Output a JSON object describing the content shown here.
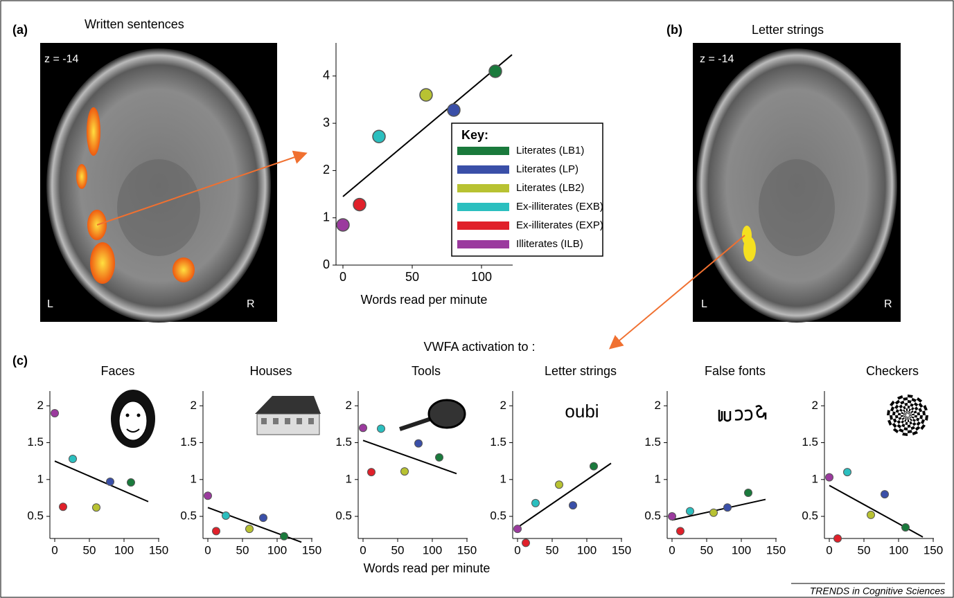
{
  "panel_a": {
    "label": "(a)",
    "title": "Written sentences",
    "slice": "z = -14",
    "left": "L",
    "right": "R"
  },
  "panel_b": {
    "label": "(b)",
    "title": "Letter strings",
    "slice": "z = -14",
    "left": "L",
    "right": "R"
  },
  "panel_c": {
    "label": "(c)",
    "title": "VWFA activation to :",
    "xlabel": "Words read per minute"
  },
  "footer": "TRENDS in Cognitive Sciences",
  "chart_data": [
    {
      "type": "scatter",
      "xlabel": "Words read per minute",
      "legend_title": "Key:",
      "xlim": [
        -5,
        122.5
      ],
      "ylim": [
        0,
        4.7
      ],
      "xticks": [
        0,
        50,
        100
      ],
      "yticks": [
        0,
        1,
        2,
        3,
        4
      ],
      "fit": {
        "x": [
          0,
          122
        ],
        "y": [
          1.45,
          4.45
        ]
      },
      "series": [
        {
          "name": "Literates (LB1)",
          "color": "#1a7a3c",
          "x": [
            110
          ],
          "values": [
            4.1
          ]
        },
        {
          "name": "Literates (LP)",
          "color": "#3a4fa8",
          "x": [
            80
          ],
          "values": [
            3.28
          ]
        },
        {
          "name": "Literates (LB2)",
          "color": "#b8c232",
          "x": [
            60
          ],
          "values": [
            3.6
          ]
        },
        {
          "name": "Ex-illiterates (EXB)",
          "color": "#2bbfbf",
          "x": [
            26
          ],
          "values": [
            2.72
          ]
        },
        {
          "name": "Ex-illiterates (EXP)",
          "color": "#e0202a",
          "x": [
            12
          ],
          "values": [
            1.28
          ]
        },
        {
          "name": "Illiterates (ILB)",
          "color": "#9b3a9e",
          "x": [
            0
          ],
          "values": [
            0.85
          ]
        }
      ]
    },
    {
      "type": "scatter",
      "title": "Faces",
      "x": [
        110,
        80,
        60,
        26,
        12,
        0
      ],
      "values": [
        0.96,
        0.97,
        0.62,
        1.28,
        0.63,
        1.9
      ],
      "colors": [
        "#1a7a3c",
        "#3a4fa8",
        "#b8c232",
        "#2bbfbf",
        "#e0202a",
        "#9b3a9e"
      ],
      "fit": {
        "x": [
          0,
          135
        ],
        "y": [
          1.25,
          0.7
        ]
      },
      "xlim": [
        -7,
        151
      ],
      "ylim": [
        0.2,
        2.2
      ],
      "xticks": [
        0,
        50,
        100,
        150
      ],
      "yticks": [
        0.5,
        1,
        1.5,
        2
      ]
    },
    {
      "type": "scatter",
      "title": "Houses",
      "x": [
        110,
        80,
        60,
        26,
        12,
        0
      ],
      "values": [
        0.23,
        0.48,
        0.33,
        0.51,
        0.3,
        0.78
      ],
      "colors": [
        "#1a7a3c",
        "#3a4fa8",
        "#b8c232",
        "#2bbfbf",
        "#e0202a",
        "#9b3a9e"
      ],
      "fit": {
        "x": [
          0,
          135
        ],
        "y": [
          0.62,
          0.15
        ]
      },
      "xlim": [
        -7,
        151
      ],
      "ylim": [
        0.2,
        2.2
      ],
      "xticks": [
        0,
        50,
        100,
        150
      ],
      "yticks": [
        0.5,
        1,
        1.5,
        2
      ]
    },
    {
      "type": "scatter",
      "title": "Tools",
      "x": [
        110,
        80,
        60,
        26,
        12,
        0
      ],
      "values": [
        1.3,
        1.49,
        1.11,
        1.69,
        1.1,
        1.7
      ],
      "colors": [
        "#1a7a3c",
        "#3a4fa8",
        "#b8c232",
        "#2bbfbf",
        "#e0202a",
        "#9b3a9e"
      ],
      "fit": {
        "x": [
          0,
          135
        ],
        "y": [
          1.53,
          1.08
        ]
      },
      "xlim": [
        -7,
        151
      ],
      "ylim": [
        0.2,
        2.2
      ],
      "xticks": [
        0,
        50,
        100,
        150
      ],
      "yticks": [
        0.5,
        1,
        1.5,
        2
      ]
    },
    {
      "type": "scatter",
      "title": "Letter strings",
      "stimulus": "oubi",
      "x": [
        110,
        80,
        60,
        26,
        12,
        0
      ],
      "values": [
        1.18,
        0.65,
        0.93,
        0.68,
        0.14,
        0.33
      ],
      "colors": [
        "#1a7a3c",
        "#3a4fa8",
        "#b8c232",
        "#2bbfbf",
        "#e0202a",
        "#9b3a9e"
      ],
      "fit": {
        "x": [
          0,
          135
        ],
        "y": [
          0.35,
          1.22
        ]
      },
      "xlim": [
        -7,
        151
      ],
      "ylim": [
        0.2,
        2.2
      ],
      "xticks": [
        0,
        50,
        100,
        150
      ],
      "yticks": [
        0.5,
        1,
        1.5,
        2
      ]
    },
    {
      "type": "scatter",
      "title": "False fonts",
      "x": [
        110,
        80,
        60,
        26,
        12,
        0
      ],
      "values": [
        0.82,
        0.62,
        0.55,
        0.57,
        0.3,
        0.5
      ],
      "colors": [
        "#1a7a3c",
        "#3a4fa8",
        "#b8c232",
        "#2bbfbf",
        "#e0202a",
        "#9b3a9e"
      ],
      "fit": {
        "x": [
          0,
          135
        ],
        "y": [
          0.45,
          0.73
        ]
      },
      "xlim": [
        -7,
        151
      ],
      "ylim": [
        0.2,
        2.2
      ],
      "xticks": [
        0,
        50,
        100,
        150
      ],
      "yticks": [
        0.5,
        1,
        1.5,
        2
      ]
    },
    {
      "type": "scatter",
      "title": "Checkers",
      "x": [
        110,
        80,
        60,
        26,
        12,
        0
      ],
      "values": [
        0.35,
        0.8,
        0.52,
        1.1,
        0.2,
        1.03
      ],
      "colors": [
        "#1a7a3c",
        "#3a4fa8",
        "#b8c232",
        "#2bbfbf",
        "#e0202a",
        "#9b3a9e"
      ],
      "fit": {
        "x": [
          0,
          135
        ],
        "y": [
          0.92,
          0.22
        ]
      },
      "xlim": [
        -7,
        151
      ],
      "ylim": [
        0.2,
        2.2
      ],
      "xticks": [
        0,
        50,
        100,
        150
      ],
      "yticks": [
        0.5,
        1,
        1.5,
        2
      ]
    }
  ]
}
